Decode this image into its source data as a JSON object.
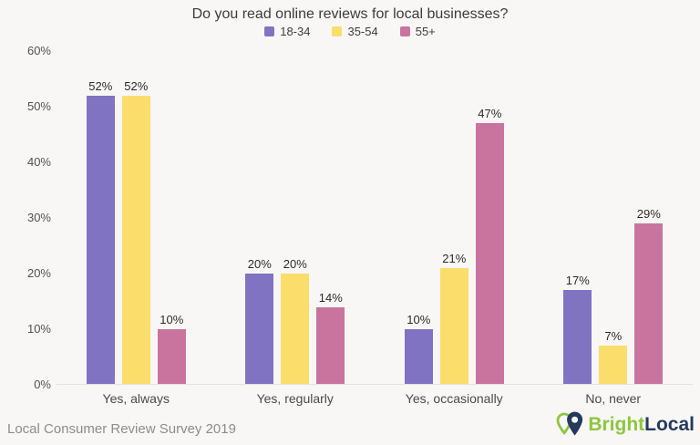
{
  "chart_data": {
    "type": "bar",
    "title": "Do you read online reviews for local businesses?",
    "categories": [
      "Yes, always",
      "Yes, regularly",
      "Yes, occasionally",
      "No, never"
    ],
    "series": [
      {
        "name": "18-34",
        "color": "#8073c2",
        "values": [
          52,
          20,
          10,
          17
        ]
      },
      {
        "name": "35-54",
        "color": "#fbdd6c",
        "values": [
          52,
          20,
          21,
          7
        ]
      },
      {
        "name": "55+",
        "color": "#c9749f",
        "values": [
          10,
          14,
          47,
          29
        ]
      }
    ],
    "value_suffix": "%",
    "ylabel": "",
    "xlabel": "",
    "ylim": [
      0,
      60
    ],
    "yticks": [
      0,
      10,
      20,
      30,
      40,
      50,
      60
    ],
    "ytick_suffix": "%",
    "grid": false,
    "legend_position": "top",
    "background_color": "#f8f7f5"
  },
  "footer": {
    "source": "Local Consumer Review Survey 2019"
  },
  "logo": {
    "text_primary": "Bright",
    "text_secondary": "Local",
    "color_primary": "#8dc63f",
    "color_secondary": "#233a5c"
  }
}
